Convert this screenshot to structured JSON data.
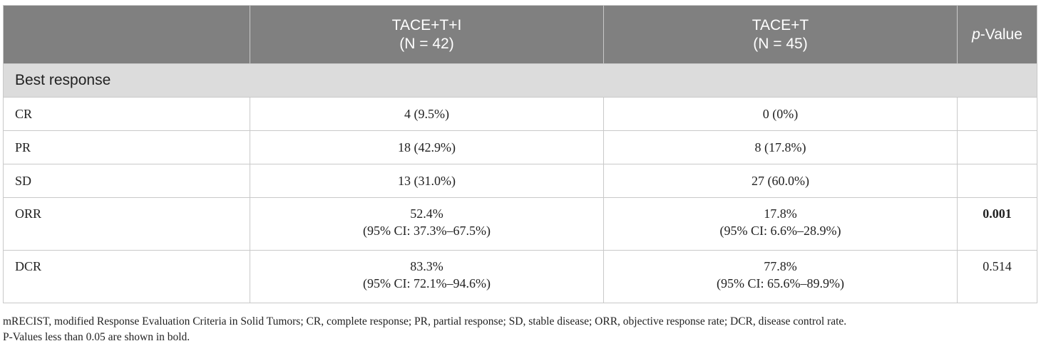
{
  "table": {
    "header": {
      "col1": "",
      "col2_line1": "TACE+T+I",
      "col2_line2": "(N = 42)",
      "col3_line1": "TACE+T",
      "col3_line2": "(N = 45)",
      "col4_italic": "p",
      "col4_rest": "-Value"
    },
    "section": "Best response",
    "rows": [
      {
        "label": "CR",
        "a1": "4 (9.5%)",
        "a2": "",
        "b1": "0 (0%)",
        "b2": "",
        "p": "",
        "p_bold": false
      },
      {
        "label": "PR",
        "a1": "18 (42.9%)",
        "a2": "",
        "b1": "8 (17.8%)",
        "b2": "",
        "p": "",
        "p_bold": false
      },
      {
        "label": "SD",
        "a1": "13 (31.0%)",
        "a2": "",
        "b1": "27 (60.0%)",
        "b2": "",
        "p": "",
        "p_bold": false
      },
      {
        "label": "ORR",
        "a1": "52.4%",
        "a2": "(95% CI: 37.3%–67.5%)",
        "b1": "17.8%",
        "b2": "(95% CI: 6.6%–28.9%)",
        "p": "0.001",
        "p_bold": true
      },
      {
        "label": "DCR",
        "a1": "83.3%",
        "a2": "(95% CI: 72.1%–94.6%)",
        "b1": "77.8%",
        "b2": "(95% CI: 65.6%–89.9%)",
        "p": "0.514",
        "p_bold": false
      }
    ]
  },
  "footnote": {
    "line1": "mRECIST, modified Response Evaluation Criteria in Solid Tumors; CR, complete response; PR, partial response; SD, stable disease; ORR, objective response rate; DCR, disease control rate.",
    "line2": "P-Values less than 0.05 are shown in bold."
  },
  "colors": {
    "header_bg": "#808080",
    "section_bg": "#dcdcdc",
    "border": "#c9c9c9"
  }
}
